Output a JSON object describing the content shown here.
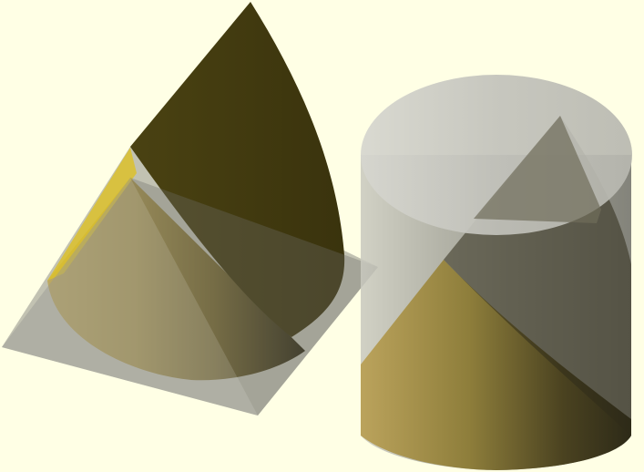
{
  "viewport": {
    "background_color": "#ffffe5"
  },
  "objects": [
    {
      "name": "cone",
      "shape": "cone",
      "material": "gold"
    },
    {
      "name": "transparent-pyramid",
      "shape": "pyramid",
      "material": "translucent-gray"
    },
    {
      "name": "transparent-cylinder",
      "shape": "cylinder",
      "material": "translucent-gray"
    },
    {
      "name": "tilted-cone",
      "shape": "cone",
      "material": "gold"
    }
  ],
  "colors": {
    "gold_light": "#b5a35a",
    "gold_mid": "#8c7d3a",
    "gold_dark": "#3f3810",
    "gold_top": "#dcc12c",
    "glass": "#9c9c9c",
    "glass_top": "#c6c6c2"
  }
}
